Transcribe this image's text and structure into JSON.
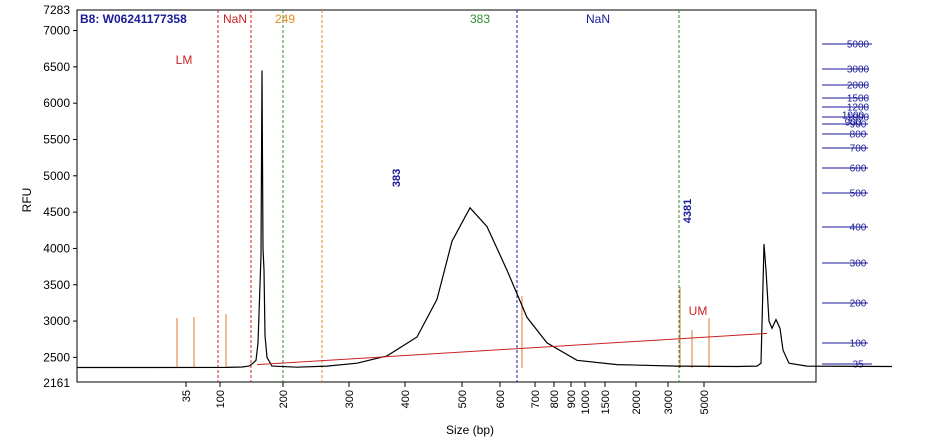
{
  "chart_data": {
    "type": "line",
    "sample_label": "B8: W06241177358",
    "xlabel": "Size (bp)",
    "ylabel": "RFU",
    "ylim": [
      2161,
      7283
    ],
    "y_ticks": [
      2500,
      3000,
      3500,
      4000,
      4500,
      5000,
      5500,
      6000,
      6500,
      7000
    ],
    "y_edge_labels": [
      "7283",
      "2161"
    ],
    "x_ticks": [
      "35",
      "100",
      "200",
      "300",
      "400",
      "500",
      "600",
      "700",
      "800",
      "900",
      "1000",
      "1500",
      "2000",
      "3000",
      "5000"
    ],
    "right_scale_ticks": [
      "5000",
      "3000",
      "2000",
      "1500",
      "1200",
      "1000",
      "900",
      "800",
      "700",
      "600",
      "500",
      "400",
      "300",
      "200",
      "100",
      "35"
    ],
    "right_scale_marker_labels": [
      "1000",
      "900"
    ],
    "right_scale_colors": [
      "#1a1a99",
      "#1a1a99",
      "#1a1a99",
      "#1a1a99",
      "#1a1a99",
      "#1a1a99",
      "#1a1a99",
      "#1a1a99",
      "#1a1a99",
      "#1a1a99",
      "#1a1a99",
      "#1a1a99",
      "#1a1a99",
      "#1a1a99",
      "#1a1a99",
      "#1a1a99"
    ],
    "region_labels": [
      {
        "text": "NaN",
        "color": "#cc2222"
      },
      {
        "text": "249",
        "color": "#e08a1e"
      },
      {
        "text": "383",
        "color": "#2e8b2e"
      },
      {
        "text": "NaN",
        "color": "#1a1a99"
      }
    ],
    "peak_labels": [
      {
        "text": "LM",
        "size_bp": 35,
        "rfu": 6450,
        "color": "#cc2222"
      },
      {
        "text": "383",
        "size_bp": 383,
        "rfu": 4560,
        "color": "#1a1a99"
      },
      {
        "text": "4381",
        "size_bp": 4381,
        "rfu": 4060,
        "color": "#1a1a99"
      },
      {
        "text": "UM",
        "size_bp": 5000,
        "rfu": 3020,
        "color": "#cc2222"
      }
    ],
    "series": [
      {
        "color": "#000000",
        "points": [
          [
            0,
            2360
          ],
          [
            70,
            2360
          ],
          [
            150,
            2362
          ],
          [
            165,
            2368
          ],
          [
            172,
            2380
          ],
          [
            176,
            2420
          ],
          [
            179,
            2460
          ],
          [
            181,
            2700
          ],
          [
            183,
            3500
          ],
          [
            184,
            3900
          ],
          [
            185,
            6450
          ],
          [
            186,
            4000
          ],
          [
            187,
            3700
          ],
          [
            188,
            2800
          ],
          [
            190,
            2500
          ],
          [
            195,
            2380
          ],
          [
            220,
            2365
          ],
          [
            250,
            2380
          ],
          [
            280,
            2420
          ],
          [
            310,
            2520
          ],
          [
            340,
            2780
          ],
          [
            360,
            3300
          ],
          [
            375,
            4100
          ],
          [
            393,
            4560
          ],
          [
            410,
            4300
          ],
          [
            430,
            3700
          ],
          [
            450,
            3050
          ],
          [
            470,
            2700
          ],
          [
            500,
            2460
          ],
          [
            540,
            2400
          ],
          [
            600,
            2380
          ],
          [
            660,
            2375
          ],
          [
            680,
            2380
          ],
          [
            684,
            2420
          ],
          [
            686,
            3500
          ],
          [
            687,
            4060
          ],
          [
            689,
            3700
          ],
          [
            692,
            3000
          ],
          [
            695,
            2900
          ],
          [
            699,
            3020
          ],
          [
            703,
            2900
          ],
          [
            706,
            2600
          ],
          [
            712,
            2420
          ],
          [
            730,
            2380
          ],
          [
            815,
            2375
          ]
        ]
      },
      {
        "color": "#cc2222",
        "points": [
          [
            180,
            2400
          ],
          [
            690,
            2830
          ]
        ]
      }
    ]
  }
}
